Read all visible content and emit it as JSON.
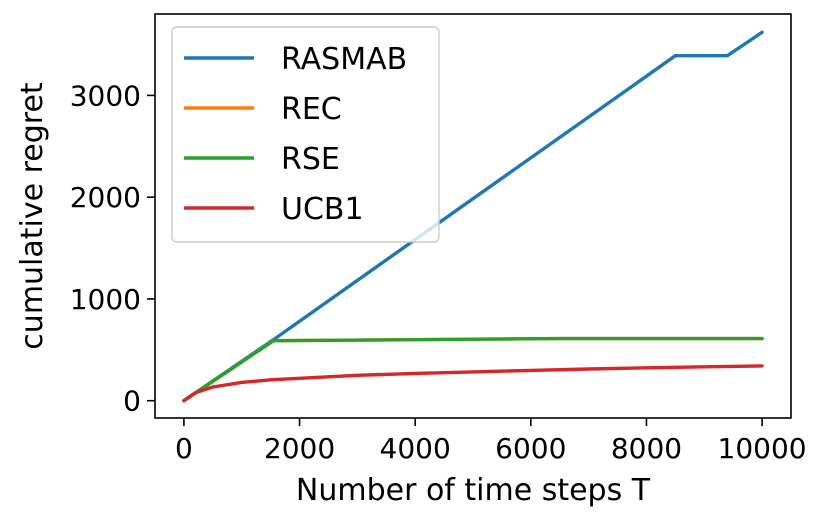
{
  "chart_data": {
    "type": "line",
    "xlabel": "Number of time steps T",
    "ylabel": "cumulative regret",
    "xlim": [
      -500,
      10500
    ],
    "ylim": [
      -170,
      3800
    ],
    "xticks": [
      0,
      2000,
      4000,
      6000,
      8000,
      10000
    ],
    "xtick_labels": [
      "0",
      "2000",
      "4000",
      "6000",
      "8000",
      "10000"
    ],
    "yticks": [
      0,
      1000,
      2000,
      3000
    ],
    "ytick_labels": [
      "0",
      "1000",
      "2000",
      "3000"
    ],
    "grid": false,
    "legend_position": "upper-left",
    "series": [
      {
        "name": "RASMAB",
        "color": "#1f77b4",
        "x": [
          0,
          1600,
          8500,
          9400,
          10000
        ],
        "y": [
          0,
          620,
          3390,
          3390,
          3620
        ]
      },
      {
        "name": "REC",
        "color": "#ff7f0e",
        "x": [
          0,
          1550,
          6500,
          10000
        ],
        "y": [
          0,
          590,
          610,
          610
        ]
      },
      {
        "name": "RSE",
        "color": "#2ca02c",
        "x": [
          0,
          1550,
          6500,
          10000
        ],
        "y": [
          0,
          590,
          610,
          610
        ]
      },
      {
        "name": "UCB1",
        "color": "#d62728",
        "x": [
          0,
          200,
          500,
          1000,
          1500,
          2000,
          3000,
          4000,
          5000,
          6000,
          7000,
          8000,
          9000,
          10000
        ],
        "y": [
          0,
          80,
          135,
          180,
          205,
          220,
          250,
          268,
          283,
          298,
          312,
          323,
          333,
          342
        ]
      }
    ]
  }
}
